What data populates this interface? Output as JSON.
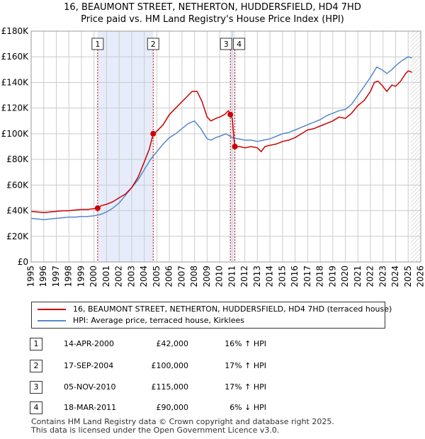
{
  "title_line1": "16, BEAUMONT STREET, NETHERTON, HUDDERSFIELD, HD4 7HD",
  "title_line2": "Price paid vs. HM Land Registry's House Price Index (HPI)",
  "colors": {
    "property": "#cc0000",
    "hpi": "#5588cc",
    "shade": "#e6ecfa",
    "grid": "#cccccc",
    "marker_line": "#cc0000"
  },
  "legend": {
    "property_label": "16, BEAUMONT STREET, NETHERTON, HUDDERSFIELD, HD4 7HD (terraced house)",
    "hpi_label": "HPI: Average price, terraced house, Kirklees"
  },
  "transactions": [
    {
      "num": "1",
      "date": "14-APR-2000",
      "price": "£42,000",
      "hpi": "16% ↑ HPI"
    },
    {
      "num": "2",
      "date": "17-SEP-2004",
      "price": "£100,000",
      "hpi": "17% ↑ HPI"
    },
    {
      "num": "3",
      "date": "05-NOV-2010",
      "price": "£115,000",
      "hpi": "17% ↑ HPI"
    },
    {
      "num": "4",
      "date": "18-MAR-2011",
      "price": "£90,000",
      "hpi": "6% ↓ HPI"
    }
  ],
  "footer_line1": "Contains HM Land Registry data © Crown copyright and database right 2025.",
  "footer_line2": "This data is licensed under the Open Government Licence v3.0.",
  "chart_data": {
    "type": "line",
    "xlim": [
      1995,
      2026
    ],
    "ylim": [
      0,
      180000
    ],
    "x_ticks": [
      1995,
      1996,
      1997,
      1998,
      1999,
      2000,
      2001,
      2002,
      2003,
      2004,
      2005,
      2006,
      2007,
      2008,
      2009,
      2010,
      2011,
      2012,
      2013,
      2014,
      2015,
      2016,
      2017,
      2018,
      2019,
      2020,
      2021,
      2022,
      2023,
      2024,
      2025,
      2026
    ],
    "y_ticks": [
      {
        "value": 0,
        "label": "£0"
      },
      {
        "value": 20000,
        "label": "£20K"
      },
      {
        "value": 40000,
        "label": "£40K"
      },
      {
        "value": 60000,
        "label": "£60K"
      },
      {
        "value": 80000,
        "label": "£80K"
      },
      {
        "value": 100000,
        "label": "£100K"
      },
      {
        "value": 120000,
        "label": "£120K"
      },
      {
        "value": 140000,
        "label": "£140K"
      },
      {
        "value": 160000,
        "label": "£160K"
      },
      {
        "value": 180000,
        "label": "£180K"
      }
    ],
    "shaded_ranges": [
      [
        2000.29,
        2004.71
      ],
      [
        2010.85,
        2011.21
      ]
    ],
    "future_hatch_start": 2025.2,
    "sales": [
      {
        "label": "1",
        "x": 2000.29,
        "y": 42000
      },
      {
        "label": "2",
        "x": 2004.71,
        "y": 100000
      },
      {
        "label": "3",
        "x": 2010.85,
        "y": 115000
      },
      {
        "label": "4",
        "x": 2011.21,
        "y": 90000
      }
    ],
    "series": [
      {
        "name": "16, BEAUMONT STREET, NETHERTON, HUDDERSFIELD, HD4 7HD (terraced house)",
        "color": "#cc0000",
        "x": [
          1995.0,
          1995.5,
          1996.0,
          1996.5,
          1997.0,
          1997.5,
          1998.0,
          1998.5,
          1999.0,
          1999.5,
          2000.0,
          2000.29,
          2000.6,
          2001.0,
          2001.5,
          2002.0,
          2002.5,
          2003.0,
          2003.5,
          2004.0,
          2004.4,
          2004.71,
          2005.0,
          2005.5,
          2006.0,
          2006.5,
          2007.0,
          2007.5,
          2007.8,
          2008.2,
          2008.6,
          2009.0,
          2009.3,
          2009.7,
          2010.0,
          2010.4,
          2010.7,
          2010.85,
          2011.0,
          2011.15,
          2011.21,
          2011.6,
          2012.0,
          2012.5,
          2013.0,
          2013.3,
          2013.6,
          2014.0,
          2014.5,
          2015.0,
          2015.5,
          2016.0,
          2016.5,
          2017.0,
          2017.5,
          2018.0,
          2018.5,
          2019.0,
          2019.5,
          2020.0,
          2020.5,
          2021.0,
          2021.5,
          2022.0,
          2022.3,
          2022.6,
          2022.9,
          2023.3,
          2023.7,
          2024.0,
          2024.4,
          2024.8,
          2025.0,
          2025.3
        ],
        "values": [
          39500,
          39000,
          38500,
          39000,
          39500,
          40000,
          40000,
          40500,
          41000,
          41000,
          41500,
          42000,
          44000,
          45000,
          47000,
          50000,
          53000,
          58000,
          66000,
          78000,
          88000,
          100000,
          102000,
          107000,
          115000,
          120000,
          125000,
          130000,
          133000,
          133000,
          125000,
          113000,
          110000,
          112000,
          113000,
          115000,
          118000,
          115000,
          112000,
          95000,
          90000,
          90000,
          89000,
          90000,
          89000,
          86000,
          90000,
          91000,
          92000,
          94000,
          95000,
          97000,
          100000,
          103000,
          104000,
          106000,
          108000,
          110000,
          113000,
          112000,
          116000,
          122000,
          126000,
          133000,
          140000,
          141000,
          138000,
          133000,
          138000,
          137000,
          141000,
          147000,
          149000,
          148000
        ]
      },
      {
        "name": "HPI: Average price, terraced house, Kirklees",
        "color": "#5588cc",
        "x": [
          1995.0,
          1995.5,
          1996.0,
          1996.5,
          1997.0,
          1997.5,
          1998.0,
          1998.5,
          1999.0,
          1999.5,
          2000.0,
          2000.5,
          2001.0,
          2001.5,
          2002.0,
          2002.5,
          2003.0,
          2003.5,
          2004.0,
          2004.5,
          2005.0,
          2005.5,
          2006.0,
          2006.5,
          2007.0,
          2007.5,
          2008.0,
          2008.5,
          2009.0,
          2009.3,
          2009.7,
          2010.0,
          2010.5,
          2011.0,
          2011.5,
          2012.0,
          2012.5,
          2013.0,
          2013.5,
          2014.0,
          2014.5,
          2015.0,
          2015.5,
          2016.0,
          2016.5,
          2017.0,
          2017.5,
          2018.0,
          2018.5,
          2019.0,
          2019.5,
          2020.0,
          2020.5,
          2021.0,
          2021.5,
          2022.0,
          2022.5,
          2022.9,
          2023.3,
          2023.7,
          2024.0,
          2024.5,
          2025.0,
          2025.3
        ],
        "values": [
          34000,
          33500,
          33000,
          33500,
          34000,
          34500,
          35000,
          35000,
          35500,
          35500,
          36000,
          37000,
          39000,
          42000,
          46000,
          52000,
          58000,
          64000,
          72000,
          80000,
          86000,
          92000,
          97000,
          100000,
          104000,
          108000,
          110000,
          104000,
          96000,
          95000,
          97000,
          98000,
          100000,
          97000,
          96000,
          95000,
          95000,
          94000,
          95000,
          96000,
          98000,
          100000,
          101000,
          103000,
          105000,
          107000,
          109000,
          111000,
          114000,
          116000,
          118000,
          119000,
          123000,
          130000,
          137000,
          144000,
          152000,
          150000,
          147000,
          150000,
          153000,
          157000,
          160000,
          159000
        ]
      }
    ]
  }
}
